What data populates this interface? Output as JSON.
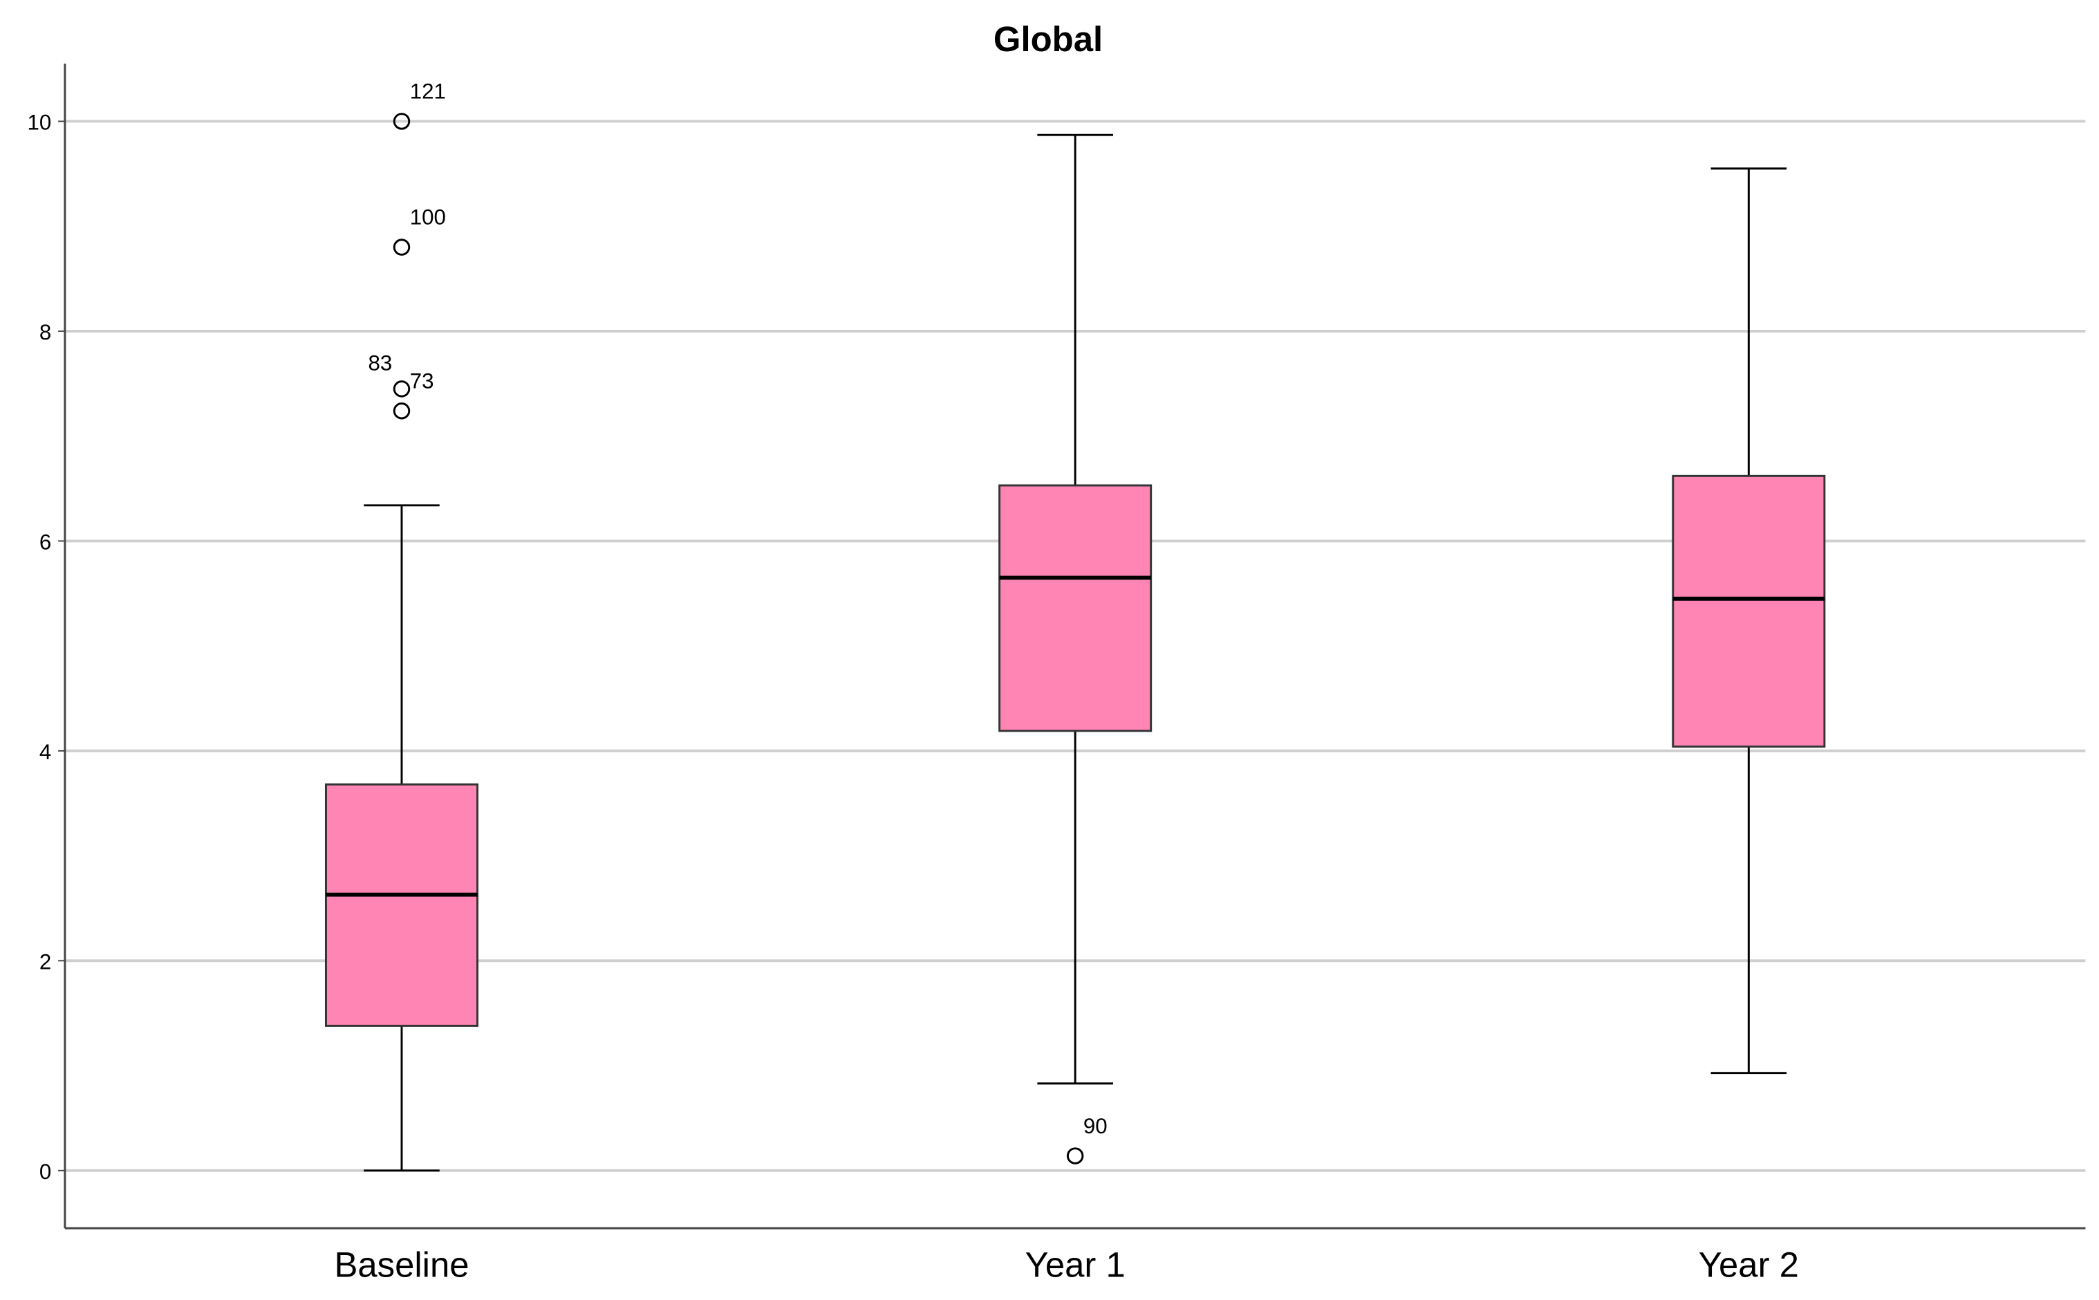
{
  "chart_data": {
    "type": "box",
    "title": "Global",
    "categories": [
      "Baseline",
      "Year 1",
      "Year 2"
    ],
    "boxes": [
      {
        "whisker_low": 0,
        "q1": 1.38,
        "median": 2.63,
        "q3": 3.68,
        "whisker_high": 6.34,
        "outliers": [
          {
            "value": 10.0,
            "label": "121"
          },
          {
            "value": 8.8,
            "label": "100"
          },
          {
            "value": 7.45,
            "label": "83"
          },
          {
            "value": 7.24,
            "label": "73"
          }
        ]
      },
      {
        "whisker_low": 0.83,
        "q1": 4.19,
        "median": 5.65,
        "q3": 6.53,
        "whisker_high": 9.87,
        "outliers": [
          {
            "value": 0.14,
            "label": "90"
          }
        ]
      },
      {
        "whisker_low": 0.93,
        "q1": 4.04,
        "median": 5.45,
        "q3": 6.62,
        "whisker_high": 9.55,
        "outliers": []
      }
    ],
    "color": "#ff85b4",
    "ylim": [
      -0.55,
      10.55
    ],
    "yticks": [
      0,
      2,
      4,
      6,
      8,
      10
    ],
    "grid": true
  }
}
